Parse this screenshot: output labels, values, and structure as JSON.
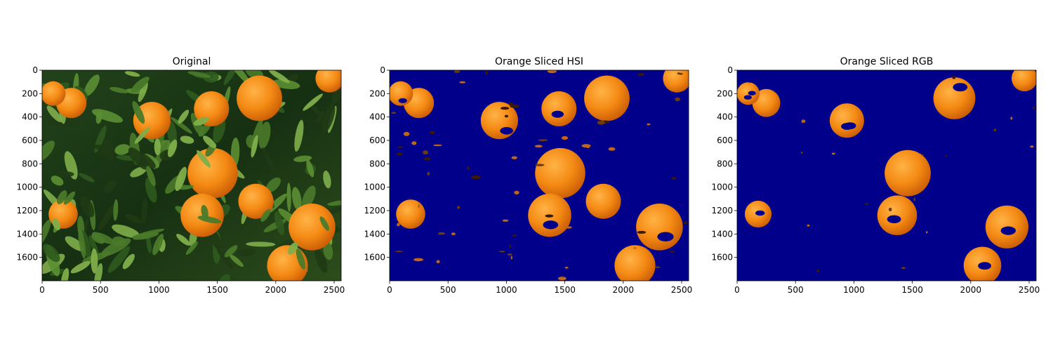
{
  "figure": {
    "panels": [
      {
        "title": "Original",
        "kind": "original"
      },
      {
        "title": "Orange Sliced HSI",
        "kind": "hsi"
      },
      {
        "title": "Orange Sliced RGB",
        "kind": "rgb"
      }
    ],
    "x_ticks": [
      "0",
      "500",
      "1000",
      "1500",
      "2000",
      "2500"
    ],
    "y_ticks": [
      "0",
      "200",
      "400",
      "600",
      "800",
      "1000",
      "1200",
      "1400",
      "1600"
    ],
    "x_tick_values": [
      0,
      500,
      1000,
      1500,
      2000,
      2500
    ],
    "y_tick_values": [
      0,
      200,
      400,
      600,
      800,
      1000,
      1200,
      1400,
      1600
    ],
    "image_extent": {
      "width": 2560,
      "height": 1800
    },
    "colors": {
      "mask_background": "#00008b",
      "orange": "#f07a10",
      "orange_light": "#ffb347",
      "leaf_dark": "#1f3a14",
      "leaf": "#4a7a2a",
      "leaf_light": "#7fae4a",
      "axis": "#000000"
    },
    "oranges": [
      {
        "cx": 250,
        "cy": 280,
        "r": 130
      },
      {
        "cx": 95,
        "cy": 200,
        "r": 105
      },
      {
        "cx": 940,
        "cy": 430,
        "r": 160
      },
      {
        "cx": 1860,
        "cy": 240,
        "r": 195
      },
      {
        "cx": 2460,
        "cy": 70,
        "r": 120
      },
      {
        "cx": 1460,
        "cy": 880,
        "r": 215
      },
      {
        "cx": 1370,
        "cy": 1240,
        "r": 185
      },
      {
        "cx": 2310,
        "cy": 1340,
        "r": 200
      },
      {
        "cx": 180,
        "cy": 1230,
        "r": 125
      },
      {
        "cx": 2100,
        "cy": 1670,
        "r": 175
      },
      {
        "cx": 1830,
        "cy": 1120,
        "r": 150
      },
      {
        "cx": 1450,
        "cy": 330,
        "r": 150
      }
    ],
    "rgb_hidden": [
      11,
      12
    ]
  }
}
